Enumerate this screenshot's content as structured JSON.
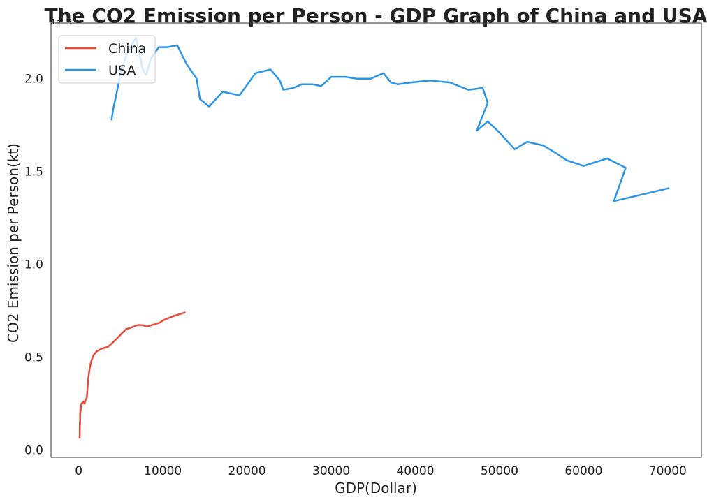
{
  "chart_data": {
    "type": "line",
    "title": "The CO2 Emission per Person - GDP Graph of China and USA",
    "xlabel": "GDP(Dollar)",
    "ylabel": "CO2 Emission per Person(kt)",
    "y_offset_text": "1e−5",
    "xlim": [
      -3300,
      74000
    ],
    "ylim": [
      -0.04,
      2.3
    ],
    "x_ticks": [
      0,
      10000,
      20000,
      30000,
      40000,
      50000,
      60000,
      70000
    ],
    "x_tick_labels": [
      "0",
      "10000",
      "20000",
      "30000",
      "40000",
      "50000",
      "60000",
      "70000"
    ],
    "y_ticks": [
      0.0,
      0.5,
      1.0,
      1.5,
      2.0
    ],
    "y_tick_labels": [
      "0.0",
      "0.5",
      "1.0",
      "1.5",
      "2.0"
    ],
    "grid": false,
    "legend_position": "top-left",
    "series": [
      {
        "name": "China",
        "color": "#e84a3b",
        "x": [
          100,
          110,
          120,
          130,
          150,
          160,
          175,
          190,
          200,
          220,
          250,
          290,
          310,
          350,
          400,
          470,
          560,
          700,
          800,
          960,
          1050,
          1150,
          1290,
          1500,
          1750,
          2100,
          2700,
          3470,
          3830,
          4530,
          5600,
          6300,
          7000,
          7600,
          8000,
          8100,
          8900,
          9600,
          10100,
          11200,
          12600
        ],
        "y": [
          0.07,
          0.065,
          0.11,
          0.15,
          0.14,
          0.2,
          0.19,
          0.22,
          0.22,
          0.21,
          0.23,
          0.24,
          0.25,
          0.25,
          0.25,
          0.255,
          0.26,
          0.25,
          0.27,
          0.28,
          0.34,
          0.39,
          0.44,
          0.48,
          0.51,
          0.53,
          0.545,
          0.555,
          0.57,
          0.6,
          0.65,
          0.66,
          0.673,
          0.672,
          0.665,
          0.665,
          0.675,
          0.685,
          0.7,
          0.72,
          0.74
        ]
      },
      {
        "name": "USA",
        "color": "#2b95e9",
        "x": [
          3900,
          4150,
          4400,
          4800,
          5200,
          5600,
          6100,
          6800,
          7600,
          8000,
          8600,
          9500,
          10500,
          11700,
          12800,
          14000,
          14400,
          15500,
          17100,
          19100,
          21000,
          22800,
          23900,
          24300,
          25500,
          26500,
          27800,
          28800,
          30000,
          31700,
          33000,
          34700,
          36200,
          37100,
          37900,
          39500,
          41700,
          44100,
          46300,
          48000,
          48600,
          47300,
          48600,
          50000,
          51800,
          53300,
          55200,
          56700,
          58000,
          60000,
          62800,
          65000,
          63600,
          70100
        ],
        "y": [
          1.78,
          1.85,
          1.9,
          1.99,
          2.06,
          2.12,
          2.17,
          2.22,
          2.05,
          2.02,
          2.11,
          2.17,
          2.17,
          2.18,
          2.08,
          2.0,
          1.89,
          1.85,
          1.93,
          1.91,
          2.03,
          2.05,
          1.99,
          1.94,
          1.95,
          1.97,
          1.97,
          1.96,
          2.01,
          2.01,
          2.0,
          2.0,
          2.03,
          1.98,
          1.97,
          1.98,
          1.99,
          1.98,
          1.94,
          1.95,
          1.87,
          1.72,
          1.77,
          1.71,
          1.62,
          1.66,
          1.64,
          1.6,
          1.56,
          1.53,
          1.57,
          1.52,
          1.34,
          1.41
        ]
      }
    ]
  }
}
